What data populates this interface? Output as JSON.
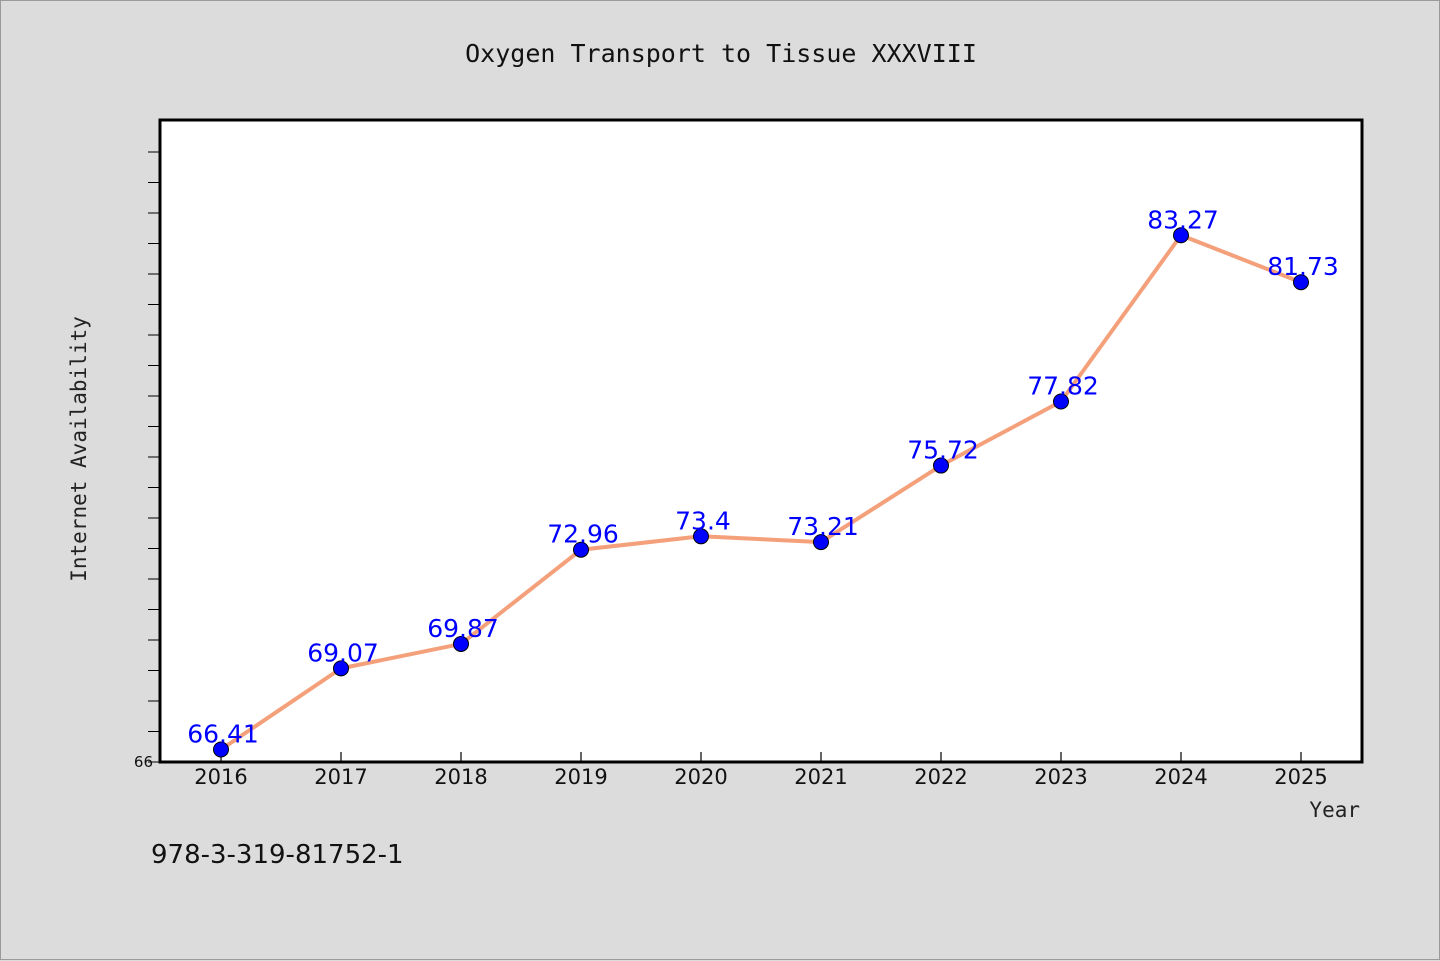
{
  "chart_data": {
    "type": "line",
    "title": "Oxygen Transport to Tissue XXXVIII",
    "xlabel": "Year",
    "ylabel": "Internet Availability",
    "categories": [
      "2016",
      "2017",
      "2018",
      "2019",
      "2020",
      "2021",
      "2022",
      "2023",
      "2024",
      "2025"
    ],
    "series": [
      {
        "values": [
          66.41,
          69.07,
          69.87,
          72.96,
          73.4,
          73.21,
          75.72,
          77.82,
          83.27,
          81.73
        ],
        "labels": [
          "66.41",
          "69.07",
          "69.87",
          "72.96",
          "73.4",
          "73.21",
          "75.72",
          "77.82",
          "83.27",
          "81.73"
        ]
      }
    ],
    "ylim": [
      66,
      86
    ],
    "y_tick_labels": [
      "66"
    ],
    "line_color": "#f4a07a",
    "marker_color": "#0000ff",
    "label_color": "#0000ff",
    "grid": false
  },
  "footer": {
    "text": "978-3-319-81752-1"
  }
}
